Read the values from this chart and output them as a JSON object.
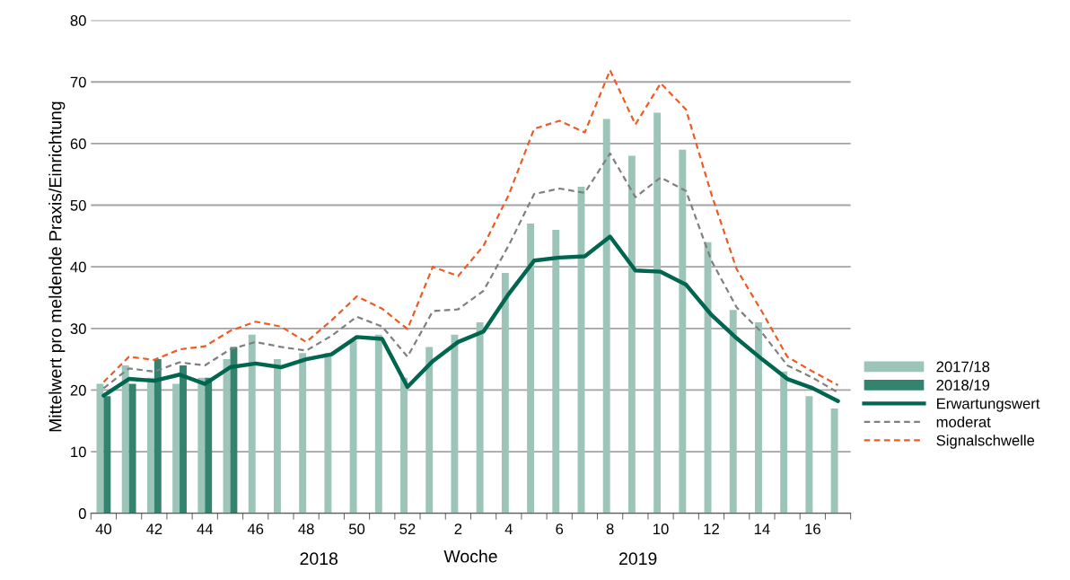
{
  "chart_data": {
    "type": "bar",
    "ylabel": "Mittelwert pro meldende Praxis/Einrichtung",
    "xlabel": "Woche",
    "categories": [
      "40",
      null,
      "42",
      null,
      "44",
      null,
      "46",
      null,
      "48",
      null,
      "50",
      null,
      "52",
      null,
      "2",
      null,
      "4",
      null,
      "6",
      null,
      "8",
      null,
      "10",
      null,
      "12",
      null,
      "14",
      null,
      "16",
      null
    ],
    "series": [
      {
        "name": "2017/18",
        "color": "#9cc4b8",
        "values": [
          21,
          24,
          22,
          21,
          22,
          25,
          29,
          25,
          26,
          26,
          28,
          29,
          22,
          27,
          29,
          31,
          39,
          47,
          46,
          53,
          64,
          58,
          65,
          59,
          44,
          33,
          31,
          23,
          19,
          17
        ]
      },
      {
        "name": "2018/19",
        "color": "#33836f",
        "values": [
          19,
          21,
          25,
          24,
          22,
          27,
          null,
          null,
          null,
          null,
          null,
          null,
          null,
          null,
          null,
          null,
          null,
          null,
          null,
          null,
          null,
          null,
          null,
          null,
          null,
          null,
          null,
          null,
          null,
          null
        ]
      },
      {
        "name": "Erwartungswert",
        "type": "line",
        "color": "#00664f",
        "line_style": "solid",
        "values": [
          19.1,
          21.8,
          21.5,
          22.5,
          21,
          23.7,
          24.3,
          23.7,
          25,
          25.8,
          28.6,
          28.3,
          20.5,
          24.7,
          27.8,
          29.5,
          35.6,
          41,
          41.5,
          41.7,
          44.9,
          39.4,
          39.2,
          37.1,
          32.2,
          28.4,
          25,
          21.8,
          20.3,
          18.2
        ]
      },
      {
        "name": "moderat",
        "type": "line",
        "color": "#808080",
        "line_style": "dashed",
        "values": [
          20.3,
          23.5,
          23,
          24.5,
          24,
          26.6,
          27.8,
          27,
          26.4,
          28.8,
          31.9,
          30.3,
          25.4,
          32.8,
          33.1,
          36.1,
          43.5,
          51.8,
          52.7,
          52,
          58.4,
          51.3,
          54.5,
          52.3,
          41,
          33.4,
          29.3,
          24,
          22,
          19.6
        ]
      },
      {
        "name": "Signalschwelle",
        "type": "line",
        "color": "#f05a23",
        "line_style": "dashed",
        "values": [
          21.3,
          25.4,
          24.9,
          26.6,
          27.1,
          29.6,
          31.1,
          30.3,
          27.8,
          31.3,
          35.2,
          33.2,
          29.9,
          40,
          38.5,
          43.4,
          51.7,
          62.4,
          63.7,
          61.8,
          71.9,
          63.1,
          69.8,
          65.5,
          51.8,
          39.6,
          32.7,
          25.4,
          23,
          20.8
        ]
      }
    ],
    "ylim": [
      0,
      80
    ],
    "yticks": [
      0,
      10,
      20,
      30,
      40,
      50,
      60,
      70,
      80
    ],
    "grid": "y",
    "legend": "right",
    "annotations": [
      "2018",
      "2019"
    ]
  }
}
